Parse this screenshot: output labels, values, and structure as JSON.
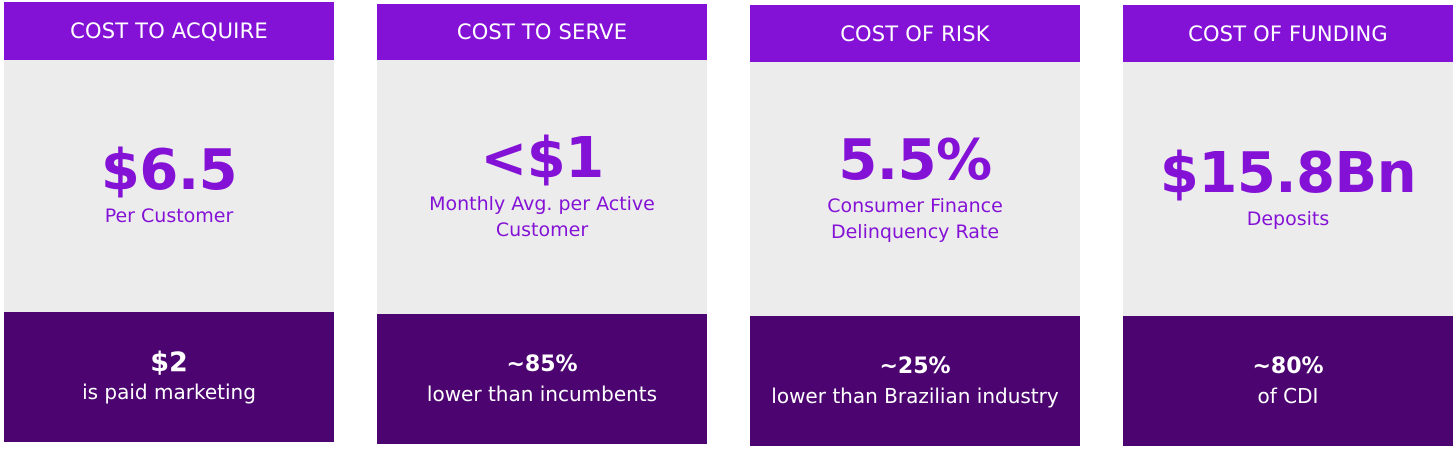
{
  "colors": {
    "header_bg": "#8412d6",
    "middle_bg": "#ececec",
    "accent_text": "#8412d6",
    "bottom_bg": "#4c0470",
    "bottom_text": "#ffffff"
  },
  "cards": [
    {
      "header": "COST TO ACQUIRE",
      "metric_value": "$6.5",
      "metric_label": "Per Customer",
      "note_value": "$2",
      "note_text": "is paid marketing"
    },
    {
      "header": "COST TO SERVE",
      "metric_value": "<$1",
      "metric_label": "Monthly Avg. per Active Customer",
      "note_value": "~85%",
      "note_text": "lower than incumbents"
    },
    {
      "header": "COST OF RISK",
      "metric_value": "5.5%",
      "metric_label": "Consumer Finance Delinquency Rate",
      "note_value": "~25%",
      "note_text": "lower than Brazilian industry"
    },
    {
      "header": "COST OF FUNDING",
      "metric_value": "$15.8Bn",
      "metric_label": "Deposits",
      "note_value": "~80%",
      "note_text": "of CDI"
    }
  ]
}
